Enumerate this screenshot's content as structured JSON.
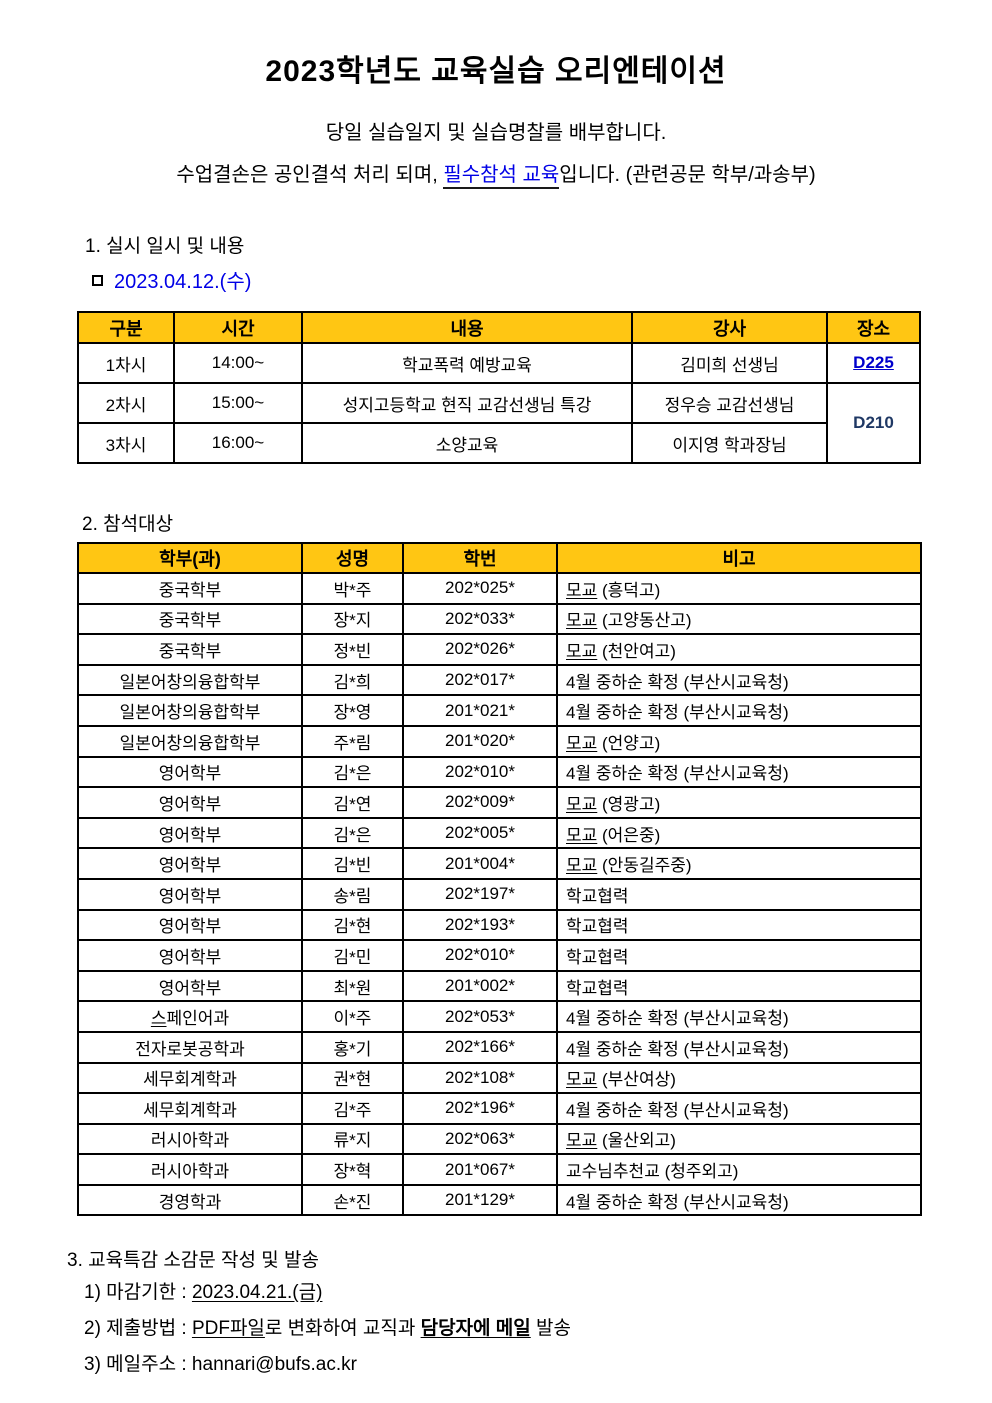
{
  "title": "2023학년도 교육실습 오리엔테이션",
  "intro": {
    "line1": "당일 실습일지 및 실습명찰를 배부합니다.",
    "line2": [
      {
        "t": "수업결손은 공인결석 처리 되며, ",
        "s": ""
      },
      {
        "t": "필수참석 교육",
        "s": "blue-ul"
      },
      {
        "t": "입니다. (관련공문 학부/과송부)",
        "s": ""
      }
    ]
  },
  "section1": {
    "heading": "1. 실시 일시 및 내용",
    "date": "2023.04.12.(수)",
    "table": {
      "headers": [
        "구분",
        "시간",
        "내용",
        "강사",
        "장소"
      ],
      "rows": [
        {
          "session": "1차시",
          "time": "14:00~",
          "content": "학교폭력 예방교육",
          "lecturer": "김미희 선생님"
        },
        {
          "session": "2차시",
          "time": "15:00~",
          "content": "성지고등학교 현직 교감선생님 특강",
          "lecturer": "정우승 교감선생님"
        },
        {
          "session": "3차시",
          "time": "16:00~",
          "content": "소양교육",
          "lecturer": "이지영 학과장님"
        }
      ],
      "room_row1": "D225",
      "room_rows23": "D210"
    }
  },
  "section2": {
    "heading": "2. 참석대상",
    "table": {
      "headers": [
        "학부(과)",
        "성명",
        "학번",
        "비고"
      ],
      "rows": [
        {
          "dept": "중국학부",
          "name": "박*주",
          "sid": "202*025*",
          "ru": "모교",
          "rr": " (흥덕고)"
        },
        {
          "dept": "중국학부",
          "name": "장*지",
          "sid": "202*033*",
          "ru": "모교",
          "rr": " (고양동산고)"
        },
        {
          "dept": "중국학부",
          "name": "정*빈",
          "sid": "202*026*",
          "ru": "모교",
          "rr": " (천안여고)"
        },
        {
          "dept": "일본어창의융합학부",
          "name": "김*희",
          "sid": "202*017*",
          "ru": "",
          "rr": "4월 중하순 확정 (부산시교육청)"
        },
        {
          "dept": "일본어창의융합학부",
          "name": "장*영",
          "sid": "201*021*",
          "ru": "",
          "rr": "4월 중하순 확정 (부산시교육청)"
        },
        {
          "dept": "일본어창의융합학부",
          "name": "주*림",
          "sid": "201*020*",
          "ru": "모교",
          "rr": " (언양고)"
        },
        {
          "dept": "영어학부",
          "name": "김*은",
          "sid": "202*010*",
          "ru": "",
          "rr": "4월 중하순 확정 (부산시교육청)"
        },
        {
          "dept": "영어학부",
          "name": "김*연",
          "sid": "202*009*",
          "ru": "모교",
          "rr": " (영광고)"
        },
        {
          "dept": "영어학부",
          "name": "김*은",
          "sid": "202*005*",
          "ru": "모교",
          "rr": " (어은중)"
        },
        {
          "dept": "영어학부",
          "name": "김*빈",
          "sid": "201*004*",
          "ru": "모교",
          "rr": " (안동길주중)"
        },
        {
          "dept": "영어학부",
          "name": "송*림",
          "sid": "202*197*",
          "ru": "",
          "rr": "학교협력"
        },
        {
          "dept": "영어학부",
          "name": "김*현",
          "sid": "202*193*",
          "ru": "",
          "rr": "학교협력"
        },
        {
          "dept": "영어학부",
          "name": "김*민",
          "sid": "202*010*",
          "ru": "",
          "rr": "학교협력"
        },
        {
          "dept": "영어학부",
          "name": "최*원",
          "sid": "201*002*",
          "ru": "",
          "rr": "학교협력"
        },
        {
          "dept": "스페인어과",
          "name": "이*주",
          "sid": "202*053*",
          "ru": "",
          "rr": "4월 중하순 확정 (부산시교육청)",
          "dept_u1": true
        },
        {
          "dept": "전자로봇공학과",
          "name": "홍*기",
          "sid": "202*166*",
          "ru": "",
          "rr": "4월 중하순 확정 (부산시교육청)"
        },
        {
          "dept": "세무회계학과",
          "name": "권*현",
          "sid": "202*108*",
          "ru": "모교",
          "rr": " (부산여상)"
        },
        {
          "dept": "세무회계학과",
          "name": "김*주",
          "sid": "202*196*",
          "ru": "",
          "rr": "4월 중하순 확정 (부산시교육청)"
        },
        {
          "dept": "러시아학과",
          "name": "류*지",
          "sid": "202*063*",
          "ru": "모교",
          "rr": " (울산외고)"
        },
        {
          "dept": "러시아학과",
          "name": "장*혁",
          "sid": "201*067*",
          "ru": "",
          "rr": "교수님추천교 (청주외고)"
        },
        {
          "dept": "경영학과",
          "name": "손*진",
          "sid": "201*129*",
          "ru": "",
          "rr": "4월 중하순 확정 (부산시교육청)"
        }
      ]
    }
  },
  "section3": {
    "heading": "3. 교육특감 소감문 작성 및 발송",
    "items": [
      [
        {
          "t": "1) 마감기한 : ",
          "s": ""
        },
        {
          "t": "2023.04.21.(금)",
          "s": "ul"
        }
      ],
      [
        {
          "t": "2) 제출방법 : ",
          "s": ""
        },
        {
          "t": "PDF파일",
          "s": "ul"
        },
        {
          "t": "로 변화하여 교직과 ",
          "s": ""
        },
        {
          "t": "담당자에 메일",
          "s": "bold-ul"
        },
        {
          "t": " 발송",
          "s": ""
        }
      ],
      [
        {
          "t": "3) 메일주소 : hannari@bufs.ac.kr",
          "s": ""
        }
      ]
    ]
  },
  "colors": {
    "table_header_bg": "#FFC613",
    "highlight_blue": "#0000E6",
    "room_link_blue": "#0000CC",
    "room_navy": "#1F3864"
  }
}
